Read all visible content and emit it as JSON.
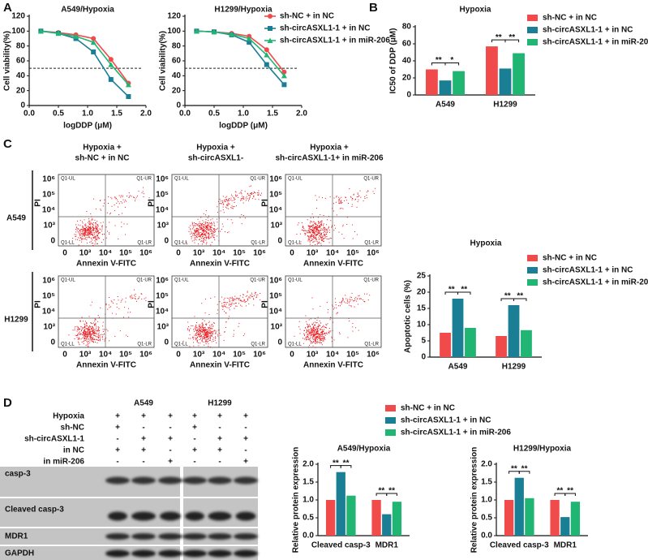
{
  "panels": [
    "A",
    "B",
    "C",
    "D"
  ],
  "chart_data": [
    {
      "type": "line",
      "title": "A549/Hypoxia",
      "x_label": "logDDP (μM)",
      "y_label": "Cell viability(%)",
      "x": [
        0.2,
        0.5,
        0.8,
        1.1,
        1.4,
        1.7
      ],
      "series": [
        {
          "name": "sh-NC +  in NC",
          "color": "#f04a4a",
          "values": [
            100,
            98,
            95,
            90,
            62,
            30
          ]
        },
        {
          "name": "sh-circASXL1-1 + in NC",
          "color": "#1a7f95",
          "values": [
            100,
            97,
            90,
            72,
            35,
            12
          ]
        },
        {
          "name": "sh-circASXL1-1 + in miR-206",
          "color": "#21b573",
          "values": [
            100,
            97,
            93,
            85,
            55,
            28
          ]
        }
      ],
      "reference_line": 50,
      "xlim": [
        0,
        2
      ],
      "xticks": [
        {
          "value": 0,
          "label": "0.0"
        },
        {
          "value": 0.5,
          "label": "0.5"
        },
        {
          "value": 1,
          "label": "1.0"
        },
        {
          "value": 1.5,
          "label": "1.5"
        },
        {
          "value": 2,
          "label": "2.0"
        }
      ],
      "ylim": [
        0,
        120
      ],
      "yticks": [
        0,
        20,
        40,
        60,
        80,
        100,
        120
      ],
      "legend": false
    },
    {
      "type": "line",
      "title": "H1299/Hypoxia",
      "x_label": "logDDP (μM)",
      "y_label": "Cell viability(%)",
      "x": [
        0.2,
        0.5,
        0.8,
        1.1,
        1.4,
        1.7
      ],
      "series": [
        {
          "name": "sh-NC +  in NC",
          "color": "#f04a4a",
          "values": [
            100,
            99,
            97,
            93,
            75,
            45
          ]
        },
        {
          "name": "sh-circASXL1-1 + in NC",
          "color": "#1a7f95",
          "values": [
            100,
            99,
            95,
            85,
            55,
            28
          ]
        },
        {
          "name": "sh-circASXL1-1 + in miR-206",
          "color": "#21b573",
          "values": [
            100,
            99,
            96,
            90,
            68,
            40
          ]
        }
      ],
      "reference_line": 50,
      "xlim": [
        0,
        2
      ],
      "xticks": [
        {
          "value": 0,
          "label": "0.0"
        },
        {
          "value": 0.5,
          "label": "0.5"
        },
        {
          "value": 1,
          "label": "1.0"
        },
        {
          "value": 1.5,
          "label": "1.5"
        },
        {
          "value": 2,
          "label": "2.0"
        }
      ],
      "ylim": [
        0,
        120
      ],
      "yticks": [
        0,
        20,
        40,
        60,
        80,
        100,
        120
      ],
      "legend": true
    },
    {
      "type": "bar",
      "title": "Hypoxia",
      "y_label": "IC50 of DDP (μM)",
      "categories": [
        "A549",
        "H1299"
      ],
      "series": [
        {
          "name": "sh-NC + in NC",
          "color": "#f04a4a",
          "values": [
            30,
            57
          ]
        },
        {
          "name": "sh-circASXL1-1 + in NC",
          "color": "#1a7f95",
          "values": [
            17,
            31
          ]
        },
        {
          "name": "sh-circASXL1-1 + in miR-206",
          "color": "#21b573",
          "values": [
            28,
            49
          ]
        }
      ],
      "annotations": [
        "**",
        "*",
        "**",
        "**"
      ],
      "ylim": [
        0,
        80
      ],
      "yticks": [
        0,
        20,
        40,
        60,
        80
      ],
      "legend": true
    },
    {
      "type": "bar",
      "title": "Hypoxia",
      "y_label": "Apoptotic cells (%)",
      "categories": [
        "A549",
        "H1299"
      ],
      "series": [
        {
          "name": "sh-NC + in NC",
          "color": "#f04a4a",
          "values": [
            7.5,
            6.5
          ]
        },
        {
          "name": "sh-circASXL1-1 + in NC",
          "color": "#1a7f95",
          "values": [
            18,
            16
          ]
        },
        {
          "name": "sh-circASXL1-1 + in miR-206",
          "color": "#21b573",
          "values": [
            9,
            8.3
          ]
        }
      ],
      "annotations": [
        "**",
        "**",
        "**",
        "**"
      ],
      "ylim": [
        0,
        25
      ],
      "yticks": [
        0,
        5,
        10,
        15,
        20,
        25
      ],
      "legend": true
    },
    {
      "type": "bar",
      "title": "A549/Hypoxia",
      "y_label": "Relative protein expression",
      "categories": [
        "Cleaved casp-3",
        "MDR1"
      ],
      "series": [
        {
          "name": "sh-NC + in NC",
          "color": "#f04a4a",
          "values": [
            1.0,
            1.0
          ]
        },
        {
          "name": "sh-circASXL1-1 + in NC",
          "color": "#1a7f95",
          "values": [
            1.78,
            0.6
          ]
        },
        {
          "name": "sh-circASXL1-1 + in miR-206",
          "color": "#21b573",
          "values": [
            1.12,
            0.95
          ]
        }
      ],
      "annotations": [
        "**",
        "**",
        "**",
        "**"
      ],
      "ylim": [
        0,
        2
      ],
      "yticks": [
        {
          "value": 0,
          "label": "0.0"
        },
        {
          "value": 0.5,
          "label": "0.5"
        },
        {
          "value": 1,
          "label": "1.0"
        },
        {
          "value": 1.5,
          "label": "1.5"
        },
        {
          "value": 2,
          "label": "2.0"
        }
      ],
      "legend": true
    },
    {
      "type": "bar",
      "title": "H1299/Hypoxia",
      "y_label": "Relative protein expression",
      "categories": [
        "Cleaved casp-3",
        "MDR1"
      ],
      "series": [
        {
          "name": "sh-NC + in NC",
          "color": "#f04a4a",
          "values": [
            1.0,
            1.0
          ]
        },
        {
          "name": "sh-circASXL1-1 + in NC",
          "color": "#1a7f95",
          "values": [
            1.62,
            0.52
          ]
        },
        {
          "name": "sh-circASXL1-1 + in miR-206",
          "color": "#21b573",
          "values": [
            1.05,
            0.95
          ]
        }
      ],
      "annotations": [
        "**",
        "**",
        "**",
        "**"
      ],
      "ylim": [
        0,
        2
      ],
      "yticks": [
        {
          "value": 0,
          "label": "0.0"
        },
        {
          "value": 0.5,
          "label": "0.5"
        },
        {
          "value": 1,
          "label": "1.0"
        },
        {
          "value": 1.5,
          "label": "1.5"
        },
        {
          "value": 2,
          "label": "2.0"
        }
      ],
      "legend": false
    }
  ],
  "flow": {
    "columns": [
      [
        "Hypoxia +",
        "sh-NC + in NC"
      ],
      [
        "Hypoxia +",
        "sh-circASXL1-"
      ],
      [
        "Hypoxia +",
        "sh-circASXL1-1+ in miR-206"
      ]
    ],
    "rows": [
      "A549",
      "H1299"
    ],
    "x_label": "Annexin V-FITC",
    "y_label": "PI",
    "ticks": [
      "0",
      "10³",
      "10⁴",
      "10⁵",
      "10⁶"
    ],
    "quadrants": [
      "Q1-UL",
      "Q1-UR",
      "Q1-LL",
      "Q1-LR"
    ]
  },
  "blot": {
    "cell_lines": [
      "A549",
      "H1299"
    ],
    "treatments": [
      {
        "label": "Hypoxia",
        "signs": [
          "+",
          "+",
          "+",
          "+",
          "+",
          "+"
        ]
      },
      {
        "label": "sh-NC",
        "signs": [
          "+",
          "-",
          "-",
          "+",
          "-",
          "-"
        ]
      },
      {
        "label": "sh-circASXL1-1",
        "signs": [
          "-",
          "+",
          "+",
          "-",
          "+",
          "+"
        ]
      },
      {
        "label": "in NC",
        "signs": [
          "+",
          "+",
          "-",
          "+",
          "+",
          "-"
        ]
      },
      {
        "label": "in miR-206",
        "signs": [
          "-",
          "-",
          "+",
          "-",
          "-",
          "+"
        ]
      }
    ],
    "bands": [
      "casp-3",
      "Cleaved casp-3",
      "MDR1",
      "GAPDH"
    ]
  }
}
